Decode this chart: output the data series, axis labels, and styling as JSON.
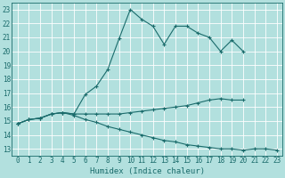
{
  "xlabel": "Humidex (Indice chaleur)",
  "background_color": "#b2e0de",
  "grid_color": "#ffffff",
  "line_color": "#1a6b6b",
  "xlim": [
    -0.5,
    23.5
  ],
  "ylim": [
    12.5,
    23.5
  ],
  "yticks": [
    13,
    14,
    15,
    16,
    17,
    18,
    19,
    20,
    21,
    22,
    23
  ],
  "xticks": [
    0,
    1,
    2,
    3,
    4,
    5,
    6,
    7,
    8,
    9,
    10,
    11,
    12,
    13,
    14,
    15,
    16,
    17,
    18,
    19,
    20,
    21,
    22,
    23
  ],
  "line_top_x": [
    0,
    1,
    2,
    3,
    4,
    5,
    6,
    7,
    8,
    9,
    10,
    11,
    12,
    13,
    14,
    15,
    16,
    17,
    18,
    19,
    20
  ],
  "line_top_y": [
    14.8,
    15.1,
    15.2,
    15.5,
    15.6,
    15.5,
    16.9,
    17.5,
    18.7,
    20.9,
    23.0,
    22.3,
    21.8,
    20.5,
    21.8,
    21.8,
    21.3,
    21.0,
    20.0,
    20.8,
    20.0
  ],
  "line_mid_x": [
    0,
    1,
    2,
    3,
    4,
    5,
    6,
    7,
    8,
    9,
    10,
    11,
    12,
    13,
    14,
    15,
    16,
    17,
    18,
    19,
    20
  ],
  "line_mid_y": [
    14.8,
    15.1,
    15.2,
    15.5,
    15.6,
    15.5,
    15.5,
    15.5,
    15.5,
    15.5,
    15.6,
    15.7,
    15.8,
    15.9,
    16.0,
    16.1,
    16.3,
    16.5,
    16.6,
    16.5,
    16.5
  ],
  "line_low_x": [
    0,
    1,
    2,
    3,
    4,
    5,
    6,
    7,
    8,
    9,
    10,
    11,
    12,
    13,
    14,
    15,
    16,
    17,
    18,
    19,
    20,
    21,
    22,
    23
  ],
  "line_low_y": [
    14.8,
    15.1,
    15.2,
    15.5,
    15.6,
    15.4,
    15.1,
    14.9,
    14.6,
    14.4,
    14.2,
    14.0,
    13.8,
    13.6,
    13.5,
    13.3,
    13.2,
    13.1,
    13.0,
    13.0,
    12.9,
    13.0,
    13.0,
    12.9
  ]
}
